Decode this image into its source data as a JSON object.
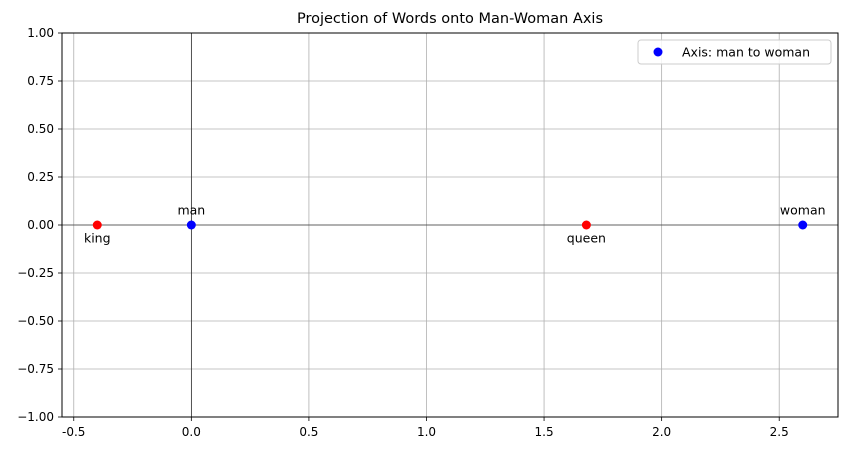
{
  "chart_data": {
    "type": "scatter",
    "title": "Projection of Words onto Man-Woman Axis",
    "xlabel": "",
    "ylabel": "",
    "xlim": [
      -0.55,
      2.75
    ],
    "ylim": [
      -1.0,
      1.0
    ],
    "grid": true,
    "legend_position": "top-right",
    "x_ticks": [
      "-0.5",
      "0.0",
      "0.5",
      "1.0",
      "1.5",
      "2.0",
      "2.5"
    ],
    "x_tick_values": [
      -0.5,
      0.0,
      0.5,
      1.0,
      1.5,
      2.0,
      2.5
    ],
    "y_ticks": [
      "1.00",
      "0.75",
      "0.50",
      "0.25",
      "0.00",
      "−0.25",
      "−0.50",
      "−0.75",
      "−1.00"
    ],
    "y_tick_values": [
      1.0,
      0.75,
      0.5,
      0.25,
      0.0,
      -0.25,
      -0.5,
      -0.75,
      -1.0
    ],
    "reference_lines": {
      "x": 0,
      "y": 0
    },
    "series": [
      {
        "name": "Axis: man to woman",
        "color": "#0000ff",
        "points": [
          {
            "label": "man",
            "x": 0.0,
            "y": 0.0,
            "label_pos": "above"
          },
          {
            "label": "woman",
            "x": 2.6,
            "y": 0.0,
            "label_pos": "above"
          }
        ]
      },
      {
        "color": "#ff0000",
        "points": [
          {
            "label": "king",
            "x": -0.4,
            "y": 0.0,
            "label_pos": "below"
          },
          {
            "label": "queen",
            "x": 1.68,
            "y": 0.0,
            "label_pos": "below"
          }
        ]
      }
    ]
  }
}
